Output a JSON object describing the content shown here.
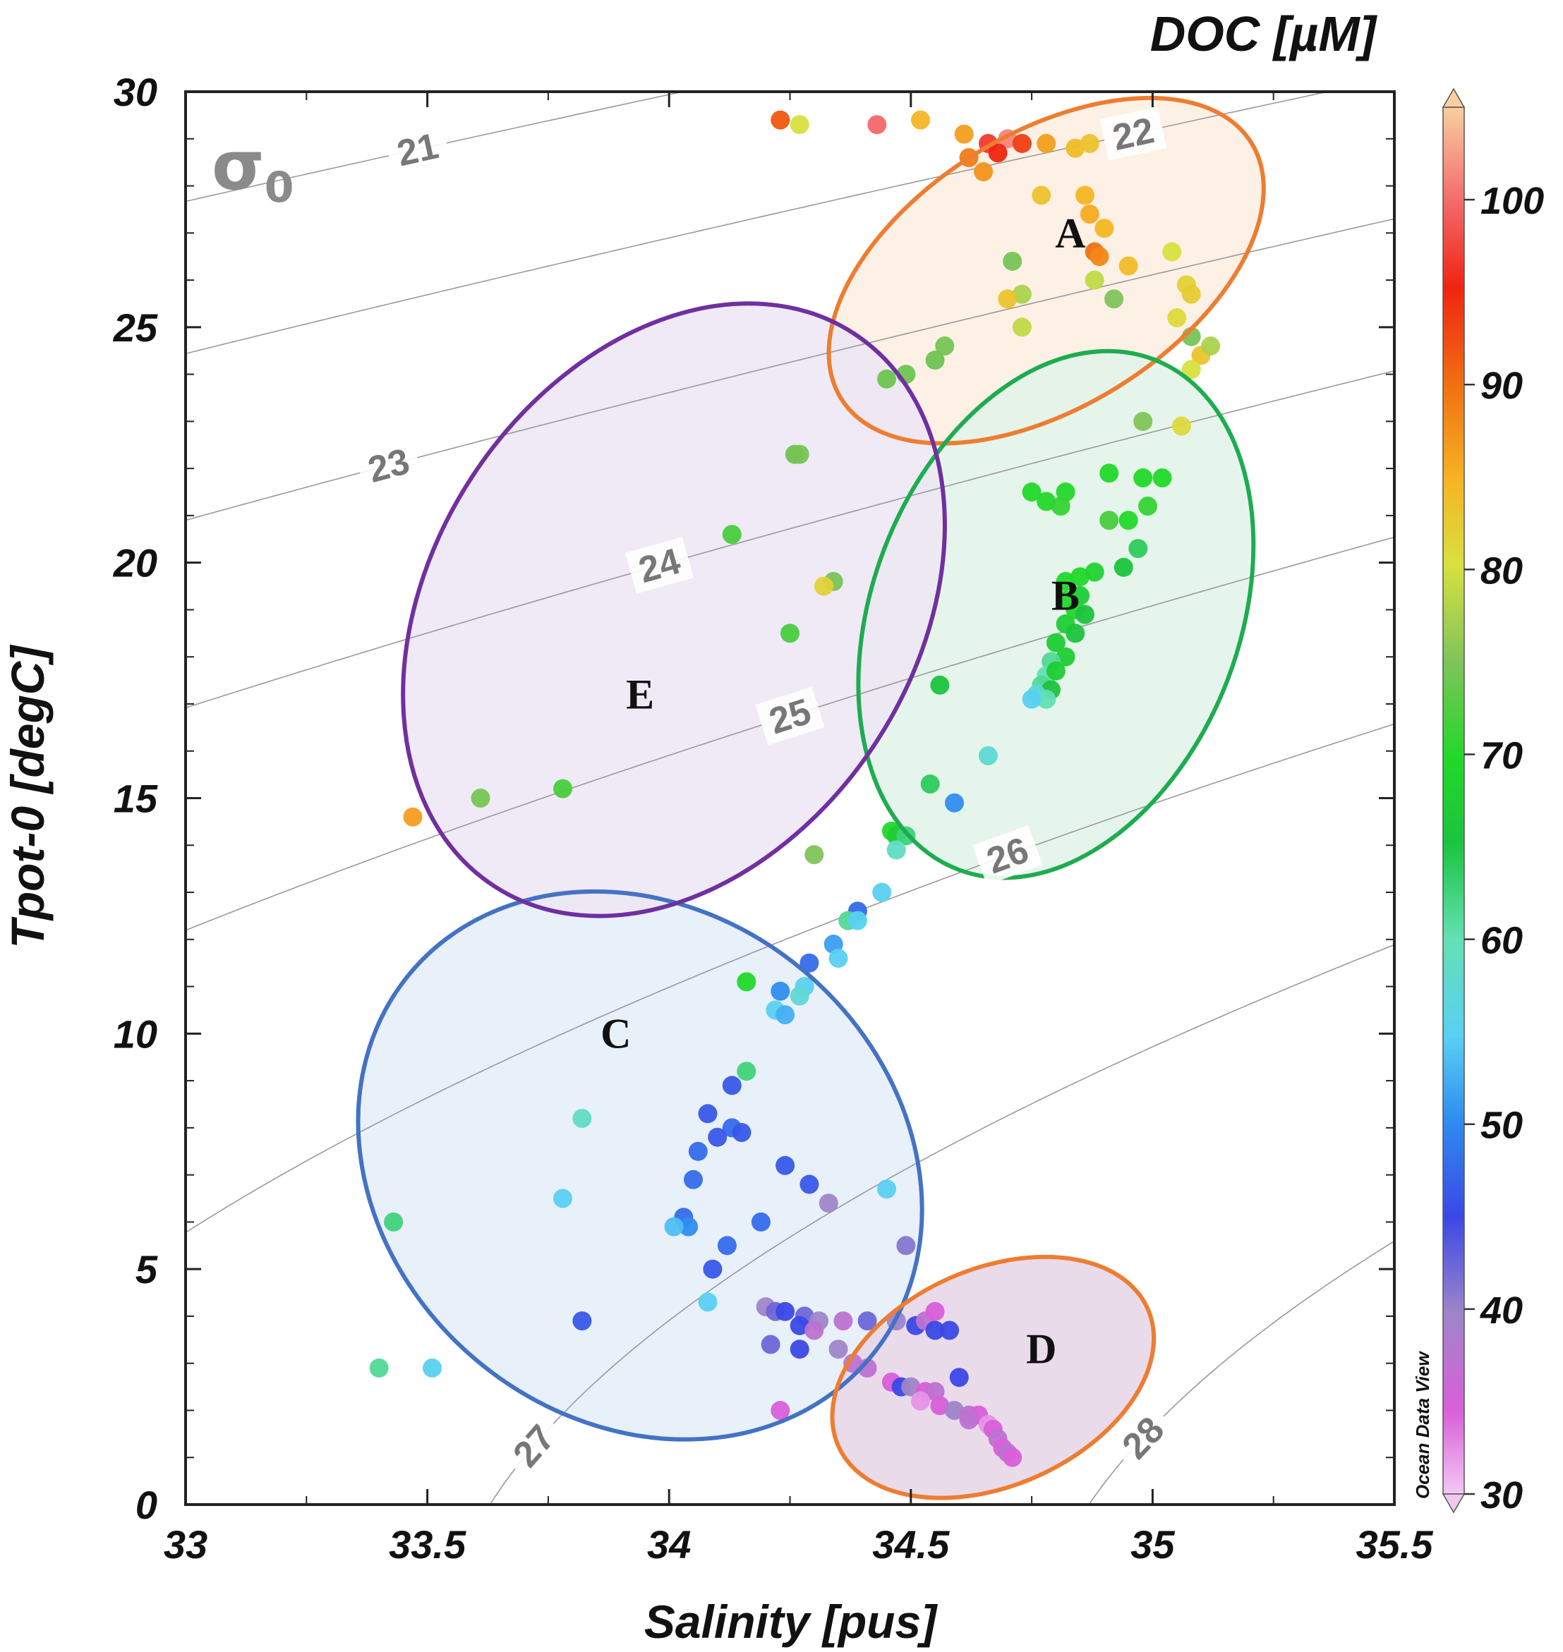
{
  "chart_data": {
    "type": "scatter",
    "title": "",
    "xlabel": "Salinity [pus]",
    "ylabel": "Tpot-0 [degC]",
    "xlim": [
      33,
      35.5
    ],
    "ylim": [
      0,
      30
    ],
    "x_ticks": [
      33,
      33.5,
      34,
      34.5,
      35,
      35.5
    ],
    "x_tick_labels": [
      "33",
      "33.5",
      "34",
      "34.5",
      "35",
      "35.5"
    ],
    "y_ticks": [
      0,
      5,
      10,
      15,
      20,
      25,
      30
    ],
    "y_tick_labels": [
      "0",
      "5",
      "10",
      "15",
      "20",
      "25",
      "30"
    ],
    "colorbar": {
      "title": "DOC [µM]",
      "range": [
        30,
        105
      ],
      "ticks": [
        30,
        40,
        50,
        60,
        70,
        80,
        90,
        100
      ],
      "tick_labels": [
        "30",
        "40",
        "50",
        "60",
        "70",
        "80",
        "90",
        "100"
      ],
      "credit": "Ocean Data View"
    },
    "density_contours": {
      "symbol": "σ",
      "subscript": "0",
      "levels": [
        21,
        22,
        23,
        24,
        25,
        26,
        27,
        28
      ],
      "labels": [
        "21",
        "22",
        "23",
        "24",
        "25",
        "26",
        "27",
        "28"
      ]
    },
    "regions": [
      {
        "label": "A",
        "color": "#ed7d31",
        "fill": "#fdeee2",
        "cx": 34.78,
        "cy": 26.2,
        "rx": 0.5,
        "ry": 2.9,
        "angle": -32
      },
      {
        "label": "B",
        "color": "#1eac50",
        "fill": "#e2f3e8",
        "cx": 34.8,
        "cy": 18.9,
        "rx": 0.38,
        "ry": 5.8,
        "angle": 21
      },
      {
        "label": "C",
        "color": "#4472c4",
        "fill": "#e4edf8",
        "cx": 33.94,
        "cy": 7.2,
        "rx": 0.62,
        "ry": 5.4,
        "angle": 40
      },
      {
        "label": "D",
        "color": "#ed7d31",
        "fill": "#e6d5e8",
        "cx": 34.67,
        "cy": 2.7,
        "rx": 0.35,
        "ry": 2.3,
        "angle": -24
      },
      {
        "label": "E",
        "color": "#7030a0",
        "fill": "#ece6f3",
        "cx": 34.01,
        "cy": 19.0,
        "rx": 0.5,
        "ry": 7.0,
        "angle": 33
      }
    ],
    "points": [
      {
        "x": 34.23,
        "y": 29.4,
        "doc": 88
      },
      {
        "x": 34.27,
        "y": 29.3,
        "doc": 74
      },
      {
        "x": 34.43,
        "y": 29.3,
        "doc": 98
      },
      {
        "x": 34.52,
        "y": 29.4,
        "doc": 80
      },
      {
        "x": 34.61,
        "y": 29.1,
        "doc": 82
      },
      {
        "x": 34.66,
        "y": 28.9,
        "doc": 94
      },
      {
        "x": 34.7,
        "y": 29.0,
        "doc": 100
      },
      {
        "x": 34.73,
        "y": 28.9,
        "doc": 90
      },
      {
        "x": 34.68,
        "y": 28.7,
        "doc": 92
      },
      {
        "x": 34.62,
        "y": 28.6,
        "doc": 85
      },
      {
        "x": 34.65,
        "y": 28.3,
        "doc": 83
      },
      {
        "x": 34.78,
        "y": 28.9,
        "doc": 82
      },
      {
        "x": 34.84,
        "y": 28.8,
        "doc": 79
      },
      {
        "x": 34.87,
        "y": 28.9,
        "doc": 78
      },
      {
        "x": 34.77,
        "y": 27.8,
        "doc": 78
      },
      {
        "x": 34.86,
        "y": 27.8,
        "doc": 80
      },
      {
        "x": 34.87,
        "y": 27.4,
        "doc": 81
      },
      {
        "x": 34.9,
        "y": 27.1,
        "doc": 80
      },
      {
        "x": 34.88,
        "y": 26.6,
        "doc": 86
      },
      {
        "x": 34.89,
        "y": 26.5,
        "doc": 84
      },
      {
        "x": 34.95,
        "y": 26.3,
        "doc": 79
      },
      {
        "x": 35.04,
        "y": 26.6,
        "doc": 74
      },
      {
        "x": 35.07,
        "y": 25.9,
        "doc": 76
      },
      {
        "x": 35.08,
        "y": 25.7,
        "doc": 77
      },
      {
        "x": 34.71,
        "y": 26.4,
        "doc": 68
      },
      {
        "x": 34.73,
        "y": 25.7,
        "doc": 72
      },
      {
        "x": 34.7,
        "y": 25.6,
        "doc": 78
      },
      {
        "x": 34.73,
        "y": 25.0,
        "doc": 73
      },
      {
        "x": 34.88,
        "y": 26.0,
        "doc": 73
      },
      {
        "x": 34.92,
        "y": 25.6,
        "doc": 70
      },
      {
        "x": 35.05,
        "y": 25.2,
        "doc": 75
      },
      {
        "x": 35.08,
        "y": 24.8,
        "doc": 68
      },
      {
        "x": 35.1,
        "y": 24.4,
        "doc": 78
      },
      {
        "x": 35.12,
        "y": 24.6,
        "doc": 72
      },
      {
        "x": 35.08,
        "y": 24.1,
        "doc": 74
      },
      {
        "x": 34.98,
        "y": 23.0,
        "doc": 70
      },
      {
        "x": 35.06,
        "y": 22.9,
        "doc": 75
      },
      {
        "x": 34.75,
        "y": 21.5,
        "doc": 62
      },
      {
        "x": 34.78,
        "y": 21.3,
        "doc": 62
      },
      {
        "x": 34.82,
        "y": 21.5,
        "doc": 62
      },
      {
        "x": 34.81,
        "y": 21.2,
        "doc": 63
      },
      {
        "x": 34.91,
        "y": 21.9,
        "doc": 62
      },
      {
        "x": 34.98,
        "y": 21.8,
        "doc": 62
      },
      {
        "x": 35.02,
        "y": 21.8,
        "doc": 62
      },
      {
        "x": 34.91,
        "y": 20.9,
        "doc": 64
      },
      {
        "x": 34.95,
        "y": 20.9,
        "doc": 62
      },
      {
        "x": 34.99,
        "y": 21.2,
        "doc": 63
      },
      {
        "x": 34.97,
        "y": 20.3,
        "doc": 57
      },
      {
        "x": 34.94,
        "y": 19.9,
        "doc": 58
      },
      {
        "x": 34.82,
        "y": 19.6,
        "doc": 62
      },
      {
        "x": 34.85,
        "y": 19.7,
        "doc": 62
      },
      {
        "x": 34.88,
        "y": 19.8,
        "doc": 61
      },
      {
        "x": 34.82,
        "y": 19.2,
        "doc": 62
      },
      {
        "x": 34.85,
        "y": 19.3,
        "doc": 60
      },
      {
        "x": 34.84,
        "y": 19.0,
        "doc": 62
      },
      {
        "x": 34.86,
        "y": 18.9,
        "doc": 58
      },
      {
        "x": 34.82,
        "y": 18.7,
        "doc": 60
      },
      {
        "x": 34.84,
        "y": 18.5,
        "doc": 58
      },
      {
        "x": 34.8,
        "y": 18.3,
        "doc": 60
      },
      {
        "x": 34.82,
        "y": 18.0,
        "doc": 60
      },
      {
        "x": 34.79,
        "y": 17.9,
        "doc": 55
      },
      {
        "x": 34.78,
        "y": 17.6,
        "doc": 54
      },
      {
        "x": 34.8,
        "y": 17.7,
        "doc": 60
      },
      {
        "x": 34.77,
        "y": 17.4,
        "doc": 55
      },
      {
        "x": 34.79,
        "y": 17.3,
        "doc": 58
      },
      {
        "x": 34.76,
        "y": 17.2,
        "doc": 52
      },
      {
        "x": 34.78,
        "y": 17.1,
        "doc": 54
      },
      {
        "x": 34.75,
        "y": 17.1,
        "doc": 50
      },
      {
        "x": 34.56,
        "y": 17.4,
        "doc": 58
      },
      {
        "x": 34.66,
        "y": 15.9,
        "doc": 52
      },
      {
        "x": 34.54,
        "y": 15.3,
        "doc": 57
      },
      {
        "x": 34.59,
        "y": 14.9,
        "doc": 46
      },
      {
        "x": 34.46,
        "y": 14.3,
        "doc": 62
      },
      {
        "x": 34.47,
        "y": 14.2,
        "doc": 60
      },
      {
        "x": 34.49,
        "y": 14.2,
        "doc": 56
      },
      {
        "x": 34.47,
        "y": 13.9,
        "doc": 53
      },
      {
        "x": 34.44,
        "y": 13.0,
        "doc": 50
      },
      {
        "x": 34.57,
        "y": 24.6,
        "doc": 68
      },
      {
        "x": 34.55,
        "y": 24.3,
        "doc": 66
      },
      {
        "x": 34.49,
        "y": 24.0,
        "doc": 66
      },
      {
        "x": 34.45,
        "y": 23.9,
        "doc": 66
      },
      {
        "x": 34.26,
        "y": 22.3,
        "doc": 66
      },
      {
        "x": 34.27,
        "y": 22.3,
        "doc": 68
      },
      {
        "x": 34.13,
        "y": 20.6,
        "doc": 64
      },
      {
        "x": 34.34,
        "y": 19.6,
        "doc": 68
      },
      {
        "x": 34.32,
        "y": 19.5,
        "doc": 76
      },
      {
        "x": 34.25,
        "y": 18.5,
        "doc": 64
      },
      {
        "x": 33.78,
        "y": 15.2,
        "doc": 64
      },
      {
        "x": 33.61,
        "y": 15.0,
        "doc": 68
      },
      {
        "x": 33.47,
        "y": 14.6,
        "doc": 82
      },
      {
        "x": 34.3,
        "y": 13.8,
        "doc": 70
      },
      {
        "x": 34.39,
        "y": 12.6,
        "doc": 44
      },
      {
        "x": 34.37,
        "y": 12.4,
        "doc": 55
      },
      {
        "x": 34.39,
        "y": 12.4,
        "doc": 50
      },
      {
        "x": 34.34,
        "y": 11.9,
        "doc": 47
      },
      {
        "x": 34.29,
        "y": 11.5,
        "doc": 44
      },
      {
        "x": 34.35,
        "y": 11.6,
        "doc": 50
      },
      {
        "x": 34.16,
        "y": 11.1,
        "doc": 62
      },
      {
        "x": 34.23,
        "y": 10.9,
        "doc": 46
      },
      {
        "x": 34.28,
        "y": 11.0,
        "doc": 50
      },
      {
        "x": 34.27,
        "y": 10.8,
        "doc": 52
      },
      {
        "x": 34.22,
        "y": 10.5,
        "doc": 50
      },
      {
        "x": 34.24,
        "y": 10.4,
        "doc": 48
      },
      {
        "x": 34.16,
        "y": 9.2,
        "doc": 56
      },
      {
        "x": 34.13,
        "y": 8.9,
        "doc": 43
      },
      {
        "x": 34.08,
        "y": 8.3,
        "doc": 43
      },
      {
        "x": 34.13,
        "y": 8.0,
        "doc": 44
      },
      {
        "x": 34.15,
        "y": 7.9,
        "doc": 43
      },
      {
        "x": 34.1,
        "y": 7.8,
        "doc": 43
      },
      {
        "x": 34.06,
        "y": 7.5,
        "doc": 44
      },
      {
        "x": 34.24,
        "y": 7.2,
        "doc": 43
      },
      {
        "x": 34.05,
        "y": 6.9,
        "doc": 44
      },
      {
        "x": 34.29,
        "y": 6.8,
        "doc": 43
      },
      {
        "x": 33.82,
        "y": 8.2,
        "doc": 53
      },
      {
        "x": 33.78,
        "y": 6.5,
        "doc": 50
      },
      {
        "x": 34.03,
        "y": 6.1,
        "doc": 44
      },
      {
        "x": 34.19,
        "y": 6.0,
        "doc": 44
      },
      {
        "x": 34.04,
        "y": 5.9,
        "doc": 46
      },
      {
        "x": 34.01,
        "y": 5.9,
        "doc": 49
      },
      {
        "x": 34.12,
        "y": 5.5,
        "doc": 44
      },
      {
        "x": 34.09,
        "y": 5.0,
        "doc": 43
      },
      {
        "x": 34.08,
        "y": 4.3,
        "doc": 50
      },
      {
        "x": 33.43,
        "y": 6.0,
        "doc": 56
      },
      {
        "x": 33.82,
        "y": 3.9,
        "doc": 43
      },
      {
        "x": 33.4,
        "y": 2.9,
        "doc": 55
      },
      {
        "x": 33.51,
        "y": 2.9,
        "doc": 50
      },
      {
        "x": 34.45,
        "y": 6.7,
        "doc": 50
      },
      {
        "x": 34.33,
        "y": 6.4,
        "doc": 38
      },
      {
        "x": 34.49,
        "y": 5.5,
        "doc": 39
      },
      {
        "x": 34.2,
        "y": 4.2,
        "doc": 38
      },
      {
        "x": 34.22,
        "y": 4.1,
        "doc": 40
      },
      {
        "x": 34.24,
        "y": 4.1,
        "doc": 42
      },
      {
        "x": 34.28,
        "y": 4.0,
        "doc": 40
      },
      {
        "x": 34.31,
        "y": 3.9,
        "doc": 38
      },
      {
        "x": 34.27,
        "y": 3.8,
        "doc": 42
      },
      {
        "x": 34.3,
        "y": 3.7,
        "doc": 36
      },
      {
        "x": 34.36,
        "y": 3.9,
        "doc": 36
      },
      {
        "x": 34.41,
        "y": 3.9,
        "doc": 40
      },
      {
        "x": 34.47,
        "y": 3.9,
        "doc": 38
      },
      {
        "x": 34.51,
        "y": 3.8,
        "doc": 42
      },
      {
        "x": 34.53,
        "y": 3.9,
        "doc": 36
      },
      {
        "x": 34.55,
        "y": 4.1,
        "doc": 34
      },
      {
        "x": 34.55,
        "y": 3.7,
        "doc": 42
      },
      {
        "x": 34.58,
        "y": 3.7,
        "doc": 42
      },
      {
        "x": 34.21,
        "y": 3.4,
        "doc": 40
      },
      {
        "x": 34.27,
        "y": 3.3,
        "doc": 42
      },
      {
        "x": 34.35,
        "y": 3.3,
        "doc": 38
      },
      {
        "x": 34.38,
        "y": 3.0,
        "doc": 36
      },
      {
        "x": 34.41,
        "y": 2.9,
        "doc": 36
      },
      {
        "x": 34.46,
        "y": 2.6,
        "doc": 34
      },
      {
        "x": 34.48,
        "y": 2.5,
        "doc": 42
      },
      {
        "x": 34.5,
        "y": 2.5,
        "doc": 38
      },
      {
        "x": 34.53,
        "y": 2.4,
        "doc": 34
      },
      {
        "x": 34.55,
        "y": 2.4,
        "doc": 36
      },
      {
        "x": 34.52,
        "y": 2.2,
        "doc": 32
      },
      {
        "x": 34.56,
        "y": 2.1,
        "doc": 34
      },
      {
        "x": 34.6,
        "y": 2.7,
        "doc": 42
      },
      {
        "x": 34.59,
        "y": 2.0,
        "doc": 38
      },
      {
        "x": 34.62,
        "y": 1.9,
        "doc": 36
      },
      {
        "x": 34.64,
        "y": 1.9,
        "doc": 34
      },
      {
        "x": 34.66,
        "y": 1.7,
        "doc": 32
      },
      {
        "x": 34.62,
        "y": 1.8,
        "doc": 36
      },
      {
        "x": 34.67,
        "y": 1.6,
        "doc": 34
      },
      {
        "x": 34.68,
        "y": 1.4,
        "doc": 36
      },
      {
        "x": 34.69,
        "y": 1.2,
        "doc": 34
      },
      {
        "x": 34.7,
        "y": 1.1,
        "doc": 36
      },
      {
        "x": 34.71,
        "y": 1.0,
        "doc": 34
      },
      {
        "x": 34.23,
        "y": 2.0,
        "doc": 34
      }
    ]
  }
}
